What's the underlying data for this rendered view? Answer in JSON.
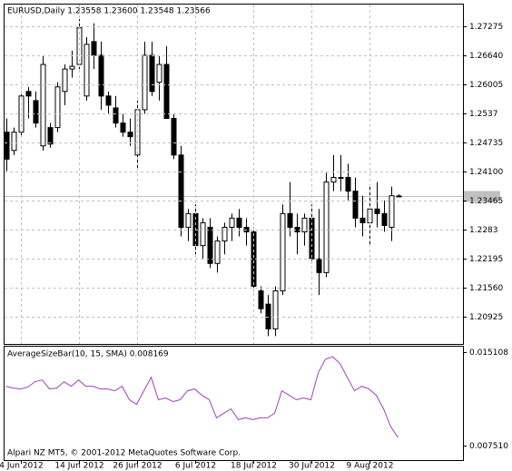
{
  "chart_data": [
    {
      "type": "candlestick",
      "title": "EURUSD,Daily  1.23558 1.23600 1.23548 1.23566",
      "categories": [
        null,
        null,
        "4 Jun 2012",
        null,
        null,
        null,
        null,
        null,
        null,
        null,
        "14 Jun 2012",
        null,
        null,
        null,
        null,
        null,
        null,
        null,
        "26 Jun 2012",
        null,
        null,
        null,
        null,
        null,
        null,
        null,
        "6 Jul 2012",
        null,
        null,
        null,
        null,
        null,
        null,
        null,
        "18 Jul 2012",
        null,
        null,
        null,
        null,
        null,
        null,
        null,
        "30 Jul 2012",
        null,
        null,
        null,
        null,
        null,
        null,
        null,
        "9 Aug 2012",
        null,
        null,
        null,
        null
      ],
      "open": [
        1.2496,
        1.2456,
        1.2496,
        1.2585,
        1.2565,
        1.2466,
        1.2506,
        1.2506,
        1.2585,
        1.2634,
        1.2644,
        1.2575,
        1.2694,
        1.2664,
        1.2575,
        1.2549,
        1.2516,
        1.2496,
        1.2446,
        1.2545,
        1.2664,
        1.2605,
        1.2644,
        1.2526,
        1.2446,
        1.2288,
        1.2318,
        1.2248,
        1.2288,
        1.2209,
        1.2258,
        1.2288,
        1.2308,
        1.2288,
        1.2278,
        1.2149,
        1.212,
        1.2066,
        1.2149,
        1.2318,
        1.2288,
        1.2278,
        1.2308,
        1.2219,
        1.2189,
        1.2387,
        1.2397,
        1.2397,
        1.2367,
        1.2308,
        1.2298,
        1.2328,
        1.2318,
        1.2288,
        1.23558
      ],
      "high": [
        1.2526,
        1.2506,
        1.2585,
        1.2595,
        1.2585,
        1.2664,
        1.2516,
        1.2605,
        1.2644,
        1.2674,
        1.2743,
        1.2704,
        1.2734,
        1.2694,
        1.2585,
        1.2575,
        1.2536,
        1.2526,
        1.2565,
        1.2694,
        1.2694,
        1.2664,
        1.2684,
        1.2536,
        1.2466,
        1.2328,
        1.2338,
        1.2308,
        1.2308,
        1.2268,
        1.2298,
        1.2318,
        1.2328,
        1.2308,
        1.2288,
        1.2159,
        1.214,
        1.2159,
        1.2338,
        1.2387,
        1.2318,
        1.2318,
        1.2338,
        1.2328,
        1.2407,
        1.2446,
        1.2446,
        1.2427,
        1.2397,
        1.2357,
        1.2377,
        1.2387,
        1.2347,
        1.2377,
        1.236
      ],
      "low": [
        1.2411,
        1.2446,
        1.2486,
        1.2526,
        1.2506,
        1.2456,
        1.2462,
        1.2496,
        1.2555,
        1.2615,
        1.2634,
        1.2565,
        1.2634,
        1.2545,
        1.2536,
        1.2506,
        1.2486,
        1.2466,
        1.2417,
        1.2536,
        1.2575,
        1.2565,
        1.2526,
        1.2437,
        1.2268,
        1.2258,
        1.2229,
        1.2219,
        1.2199,
        1.2189,
        1.2229,
        1.2258,
        1.2268,
        1.2248,
        1.2149,
        1.21,
        1.205,
        1.205,
        1.214,
        1.2268,
        1.2229,
        1.2248,
        1.2209,
        1.214,
        1.2179,
        1.2367,
        1.2367,
        1.2347,
        1.2288,
        1.2268,
        1.2248,
        1.2288,
        1.2278,
        1.2258,
        1.23548
      ],
      "close": [
        1.2437,
        1.2496,
        1.2575,
        1.2575,
        1.2516,
        1.2644,
        1.247,
        1.2595,
        1.2634,
        1.264,
        1.2724,
        1.2688,
        1.2664,
        1.2575,
        1.2555,
        1.2516,
        1.2496,
        1.2486,
        1.2545,
        1.2664,
        1.2585,
        1.2644,
        1.2526,
        1.2446,
        1.2288,
        1.2318,
        1.2248,
        1.2298,
        1.2209,
        1.2258,
        1.2288,
        1.2308,
        1.2288,
        1.2278,
        1.2159,
        1.211,
        1.2066,
        1.2149,
        1.2318,
        1.2288,
        1.2278,
        1.2308,
        1.2219,
        1.2189,
        1.2387,
        1.2397,
        1.2397,
        1.2367,
        1.2308,
        1.2298,
        1.2328,
        1.2318,
        1.2292,
        1.2357,
        1.23566
      ],
      "up_color": "#ffffff",
      "down_color": "#000000",
      "ylim": [
        1.2033,
        1.2775
      ],
      "yticks": [
        1.27275,
        {
          "value": 1.2664,
          "label": "1.26640"
        },
        1.26005,
        1.2537,
        1.24735,
        {
          "value": 1.241,
          "label": "1.24100"
        },
        1.23465,
        1.2283,
        1.22195,
        {
          "value": 1.2156,
          "label": "1.21560"
        },
        1.20925
      ],
      "grid": true
    },
    {
      "type": "line",
      "title": "AverageSizeBar(10, 15, SMA) 0.008169",
      "annotation": "Alpari NZ MT5, © 2001-2012 MetaQuotes Software Corp.",
      "color": "#a040c0",
      "values": [
        0.012332,
        0.012186,
        0.012113,
        0.012259,
        0.012697,
        0.012843,
        0.012113,
        0.012186,
        0.012697,
        0.012332,
        0.012843,
        0.012332,
        0.012332,
        0.012113,
        0.012113,
        0.011966,
        0.012332,
        0.011236,
        0.010871,
        0.011966,
        0.013062,
        0.011236,
        0.011382,
        0.01109,
        0.011236,
        0.011966,
        0.012113,
        0.011601,
        0.011236,
        0.009775,
        0.01014,
        0.010505,
        0.009628,
        0.009775,
        0.009628,
        0.009775,
        0.009775,
        0.01014,
        0.011966,
        0.011601,
        0.011236,
        0.011382,
        0.011236,
        0.013428,
        0.014524,
        0.014743,
        0.014158,
        0.013062,
        0.011966,
        0.012332,
        0.012113,
        0.011601,
        0.010505,
        0.009044,
        0.008169
      ],
      "ylim": [
        0.006341,
        0.015546
      ],
      "yticks": [
        0.015108,
        {
          "value": 0.00751,
          "label": "0.007510"
        }
      ],
      "grid": true
    }
  ]
}
